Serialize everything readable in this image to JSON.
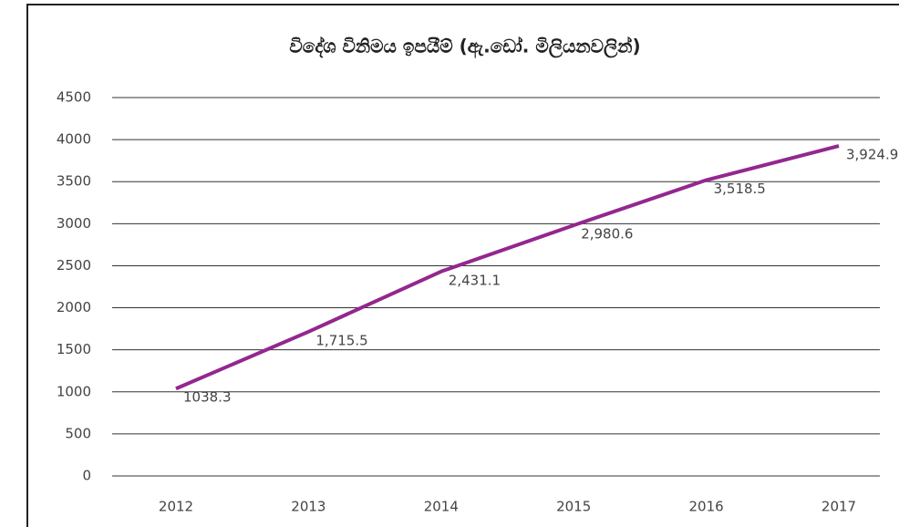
{
  "chart_data": {
    "type": "line",
    "title": "විදේශ විනිමය ඉපයීම් (ඇ.ඩෝ. මිලියනවලින්)",
    "categories": [
      "2012",
      "2013",
      "2014",
      "2015",
      "2016",
      "2017"
    ],
    "series": [
      {
        "name": "විදේශ විනිමය ඉපයීම්",
        "color": "#93278f",
        "values": [
          1038.3,
          1715.5,
          2431.1,
          2980.6,
          3518.5,
          3924.9
        ],
        "value_labels": [
          "1038.3",
          "1,715.5",
          "2,431.1",
          "2,980.6",
          "3,518.5",
          "3,924.9"
        ]
      }
    ],
    "ylim": [
      0,
      4500
    ],
    "yticks": [
      0,
      500,
      1000,
      1500,
      2000,
      2500,
      3000,
      3500,
      4000,
      4500
    ],
    "grid": true,
    "legend": false
  }
}
